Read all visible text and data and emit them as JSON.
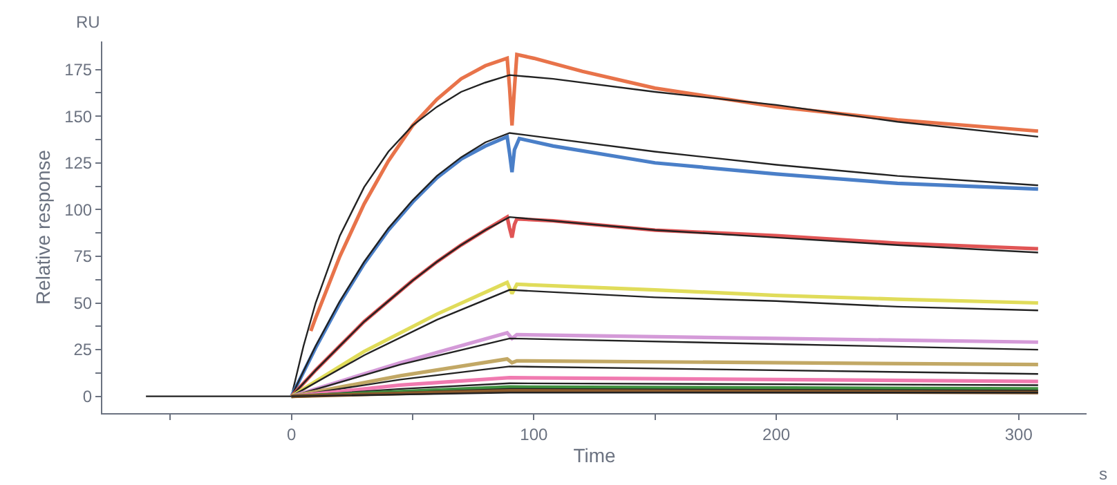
{
  "chart_data": {
    "type": "line",
    "xlabel": "Time",
    "ylabel": "Relative response",
    "annotations": [
      "RU",
      "s"
    ],
    "xlim": [
      -78,
      328
    ],
    "ylim": [
      -9,
      190
    ],
    "xticks": [
      {
        "value": -50,
        "label": null
      },
      0,
      {
        "value": 50,
        "label": null
      },
      100,
      {
        "value": 150,
        "label": null
      },
      200,
      {
        "value": 250,
        "label": null
      },
      300
    ],
    "yticks": [
      0,
      {
        "value": 12.5,
        "label": null
      },
      25,
      {
        "value": 37.5,
        "label": null
      },
      50,
      {
        "value": 62.5,
        "label": null
      },
      75,
      {
        "value": 87.5,
        "label": null
      },
      100,
      {
        "value": 112.5,
        "label": null
      },
      125,
      {
        "value": 137.5,
        "label": null
      },
      150,
      {
        "value": 162.5,
        "label": null
      },
      175
    ],
    "legend": false,
    "line_style": "solid",
    "marker": "none",
    "series": [
      {
        "color": "#e8734a",
        "x": [
          8,
          10,
          20,
          30,
          40,
          50,
          60,
          70,
          80,
          89,
          90,
          91,
          92,
          93,
          100,
          120,
          150,
          200,
          250,
          308
        ],
        "values": [
          35,
          42,
          75,
          103,
          126,
          145,
          159,
          170,
          177,
          181,
          165,
          145,
          165,
          183,
          181,
          174,
          165,
          155,
          148,
          142
        ]
      },
      {
        "color": "#222222",
        "x": [
          -60,
          0,
          5,
          10,
          20,
          30,
          40,
          50,
          60,
          70,
          80,
          90,
          108,
          150,
          200,
          250,
          308
        ],
        "values": [
          0,
          0,
          27,
          50,
          86,
          112,
          131,
          145,
          155,
          163,
          168,
          172,
          170,
          163,
          156,
          147,
          139
        ]
      },
      {
        "color": "#4a7fc8",
        "x": [
          0,
          10,
          20,
          30,
          40,
          50,
          60,
          70,
          80,
          89,
          90,
          91,
          92,
          94,
          108,
          150,
          200,
          250,
          308
        ],
        "values": [
          0,
          26,
          50,
          71,
          89,
          104,
          117,
          127,
          134,
          139,
          130,
          120,
          132,
          138,
          134,
          125,
          119,
          114,
          111
        ]
      },
      {
        "color": "#222222",
        "x": [
          0,
          10,
          20,
          30,
          40,
          50,
          60,
          70,
          80,
          90,
          108,
          150,
          200,
          250,
          308
        ],
        "values": [
          0,
          27,
          51,
          72,
          90,
          105,
          118,
          128,
          136,
          141,
          138,
          131,
          124,
          118,
          113
        ]
      },
      {
        "color": "#e05555",
        "x": [
          0,
          10,
          20,
          30,
          40,
          50,
          60,
          70,
          80,
          89,
          90,
          91,
          92,
          93,
          108,
          150,
          200,
          250,
          308
        ],
        "values": [
          0,
          14,
          27,
          40,
          51,
          62,
          72,
          81,
          89,
          96,
          90,
          85,
          92,
          95,
          94,
          89,
          86,
          82,
          79
        ]
      },
      {
        "color": "#222222",
        "x": [
          0,
          10,
          20,
          30,
          40,
          50,
          60,
          70,
          80,
          90,
          150,
          200,
          250,
          308
        ],
        "values": [
          0,
          14,
          27,
          40,
          51,
          62,
          72,
          81,
          89,
          96,
          89,
          85,
          81,
          77
        ]
      },
      {
        "color": "#e0dc5a",
        "x": [
          0,
          30,
          60,
          89,
          91,
          93,
          150,
          200,
          250,
          308
        ],
        "values": [
          0,
          24,
          44,
          61,
          55,
          60,
          57,
          54,
          52,
          50
        ]
      },
      {
        "color": "#222222",
        "x": [
          0,
          30,
          60,
          90,
          150,
          200,
          250,
          308
        ],
        "values": [
          0,
          22,
          41,
          57,
          53,
          51,
          48,
          46
        ]
      },
      {
        "color": "#d49ad8",
        "x": [
          0,
          45,
          89,
          91,
          93,
          200,
          308
        ],
        "values": [
          0,
          18,
          34,
          31,
          33,
          31,
          29
        ]
      },
      {
        "color": "#222222",
        "x": [
          0,
          45,
          90,
          200,
          308
        ],
        "values": [
          0,
          17,
          31,
          28,
          25
        ]
      },
      {
        "color": "#c2a865",
        "x": [
          0,
          45,
          89,
          91,
          93,
          308
        ],
        "values": [
          0,
          11,
          20,
          18,
          19,
          17
        ]
      },
      {
        "color": "#222222",
        "x": [
          0,
          45,
          90,
          308
        ],
        "values": [
          0,
          9,
          16,
          12
        ]
      },
      {
        "color": "#f07ab0",
        "x": [
          0,
          45,
          90,
          308
        ],
        "values": [
          0,
          6,
          10,
          8
        ]
      },
      {
        "color": "#222222",
        "x": [
          0,
          45,
          90,
          308
        ],
        "values": [
          0,
          4,
          7,
          6
        ]
      },
      {
        "color": "#3f8f3f",
        "x": [
          0,
          90,
          308
        ],
        "values": [
          0,
          5,
          4
        ]
      },
      {
        "color": "#222222",
        "x": [
          0,
          90,
          308
        ],
        "values": [
          0,
          4,
          3
        ]
      },
      {
        "color": "#8b5a2b",
        "x": [
          0,
          90,
          308
        ],
        "values": [
          0,
          3,
          2
        ]
      },
      {
        "color": "#222222",
        "x": [
          0,
          90,
          308
        ],
        "values": [
          0,
          2,
          2
        ]
      }
    ]
  }
}
